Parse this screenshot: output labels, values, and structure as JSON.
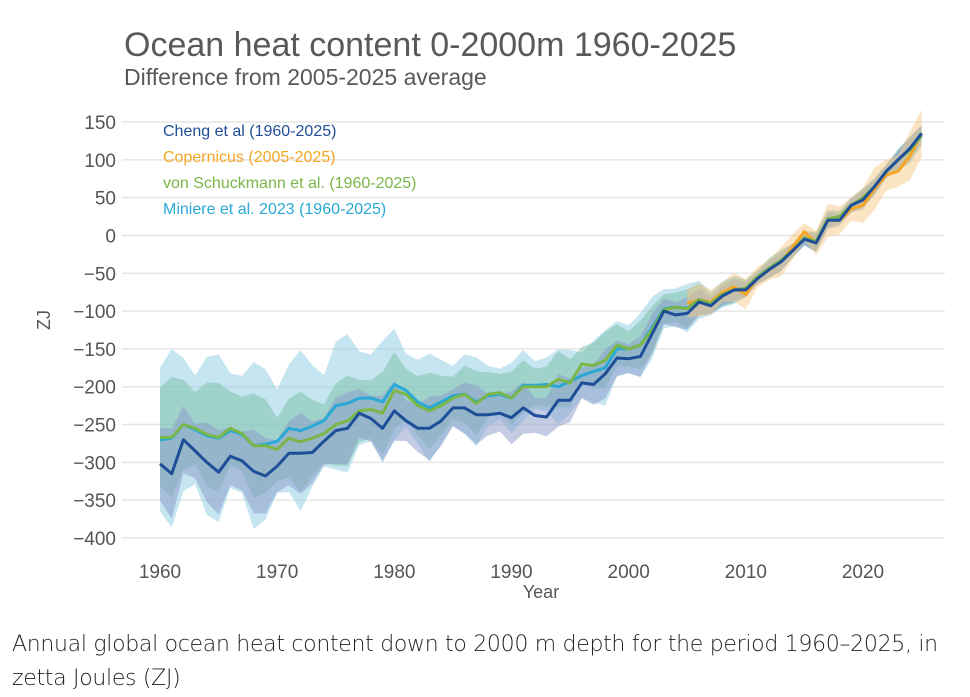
{
  "chart_data": {
    "type": "line",
    "title": "Ocean heat content 0-2000m 1960-2025",
    "subtitle": "Difference from 2005-2025 average",
    "xlabel": "Year",
    "ylabel": "ZJ",
    "xlim": [
      1958,
      2027
    ],
    "ylim": [
      -400,
      150
    ],
    "xticks": [
      1960,
      1970,
      1980,
      1990,
      2000,
      2010,
      2020
    ],
    "xtick_labels": [
      "1960",
      "1970",
      "1980",
      "1990",
      "2000",
      "2010",
      "2020"
    ],
    "yticks": [
      150,
      100,
      50,
      0,
      -50,
      -100,
      -150,
      -200,
      -250,
      -300,
      -350,
      -400
    ],
    "ytick_labels": [
      "150",
      "100",
      "50",
      "0",
      "−50",
      "−100",
      "−150",
      "−200",
      "−250",
      "−300",
      "−350",
      "−400"
    ],
    "grid": true,
    "legend_position": "top-left",
    "series": [
      {
        "name": "Miniere et al. 2023 (1960-2025)",
        "color": "#29a9d6",
        "band_color": "#8ccbe2",
        "start": 1960,
        "values": [
          -270,
          -268,
          -250,
          -257,
          -265,
          -268,
          -258,
          -263,
          -278,
          -276,
          -272,
          -255,
          -258,
          -252,
          -245,
          -225,
          -222,
          -215,
          -215,
          -220,
          -197,
          -205,
          -220,
          -228,
          -220,
          -212,
          -210,
          -220,
          -212,
          -210,
          -215,
          -198,
          -198,
          -197,
          -200,
          -193,
          -185,
          -180,
          -175,
          -150,
          -150,
          -145,
          -122,
          -97,
          -95,
          -96,
          -85,
          -90,
          -78,
          -72,
          -70,
          -55,
          -43,
          -33,
          -20,
          -4,
          -9,
          21,
          23,
          40,
          49,
          65,
          85,
          100,
          114,
          133
        ],
        "band": {
          "years": [
            1960,
            1970,
            1980,
            1990,
            2000,
            2010,
            2020,
            2025
          ],
          "halfwidth": [
            95,
            90,
            65,
            40,
            40,
            12,
            10,
            15
          ]
        }
      },
      {
        "name": "von Schuckmann et al. (1960-2025)",
        "color": "#7ab648",
        "band_color": "#7cc0a8",
        "start": 1960,
        "values": [
          -267,
          -267,
          -250,
          -255,
          -263,
          -267,
          -255,
          -262,
          -278,
          -278,
          -283,
          -268,
          -273,
          -268,
          -262,
          -250,
          -245,
          -232,
          -230,
          -235,
          -205,
          -210,
          -225,
          -232,
          -225,
          -215,
          -210,
          -222,
          -210,
          -208,
          -215,
          -200,
          -200,
          -200,
          -190,
          -195,
          -170,
          -172,
          -165,
          -145,
          -150,
          -145,
          -125,
          -98,
          -95,
          -97,
          -85,
          -90,
          -78,
          -72,
          -70,
          -55,
          -43,
          -33,
          -20,
          -3,
          -8,
          22,
          25,
          40,
          50,
          65,
          85,
          100,
          113,
          132
        ],
        "band": {
          "years": [
            1960,
            1970,
            1980,
            1990,
            2000,
            2010,
            2020,
            2025
          ],
          "halfwidth": [
            65,
            55,
            45,
            30,
            30,
            12,
            10,
            15
          ]
        }
      },
      {
        "name": "Cheng et al (1960-2025)",
        "color": "#1f4e99",
        "band_color": "#8a99c8",
        "start": 1960,
        "values": [
          -302,
          -315,
          -270,
          -285,
          -300,
          -313,
          -292,
          -298,
          -312,
          -318,
          -305,
          -288,
          -288,
          -287,
          -272,
          -258,
          -255,
          -235,
          -242,
          -255,
          -232,
          -245,
          -255,
          -255,
          -245,
          -228,
          -228,
          -237,
          -237,
          -235,
          -241,
          -228,
          -238,
          -240,
          -218,
          -218,
          -195,
          -197,
          -183,
          -162,
          -163,
          -160,
          -130,
          -100,
          -105,
          -103,
          -88,
          -93,
          -80,
          -72,
          -72,
          -57,
          -45,
          -35,
          -20,
          -5,
          -10,
          20,
          20,
          40,
          47,
          65,
          85,
          100,
          115,
          135
        ],
        "band": {
          "years": [
            1960,
            1970,
            1980,
            1990,
            2000,
            2010,
            2020,
            2025
          ],
          "halfwidth": [
            48,
            45,
            35,
            30,
            25,
            10,
            10,
            12
          ]
        }
      },
      {
        "name": "Copernicus (2005-2025)",
        "color": "#f5a623",
        "band_color": "#f8c98a",
        "start": 2005,
        "values": [
          -90,
          -85,
          -88,
          -75,
          -68,
          -78,
          -55,
          -45,
          -35,
          -15,
          5,
          -10,
          20,
          20,
          35,
          40,
          62,
          80,
          85,
          105,
          135
        ],
        "band": {
          "years": [
            2005,
            2015,
            2025
          ],
          "halfwidth": [
            18,
            15,
            28
          ]
        }
      }
    ],
    "legend_order": [
      2,
      3,
      1,
      0
    ]
  },
  "caption": "Annual global ocean heat content down to 2000 m depth for the period 1960–2025, in zetta Joules (ZJ)"
}
